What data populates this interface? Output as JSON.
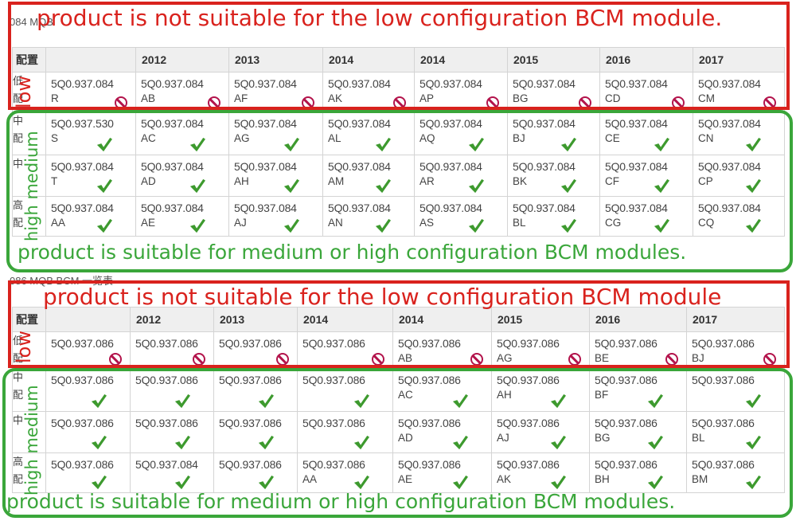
{
  "section_1": {
    "caption": "084 MQB",
    "banner_top": "product is not suitable for the low configuration BCM module.",
    "banner_bottom": "product is suitable for medium or high configuration BCM modules.",
    "vertical_low": "low",
    "vertical_medium_high": "high medium",
    "header": {
      "config_label": "配置",
      "years": [
        "",
        "2012",
        "2013",
        "2014",
        "2014",
        "2015",
        "2016",
        "2017"
      ]
    },
    "rows": [
      {
        "label": [
          "低",
          "配"
        ],
        "tier": "low",
        "status": "not-suitable",
        "cells": [
          {
            "pn": "5Q0.937.084",
            "suffix": "R"
          },
          {
            "pn": "5Q0.937.084",
            "suffix": "AB"
          },
          {
            "pn": "5Q0.937.084",
            "suffix": "AF"
          },
          {
            "pn": "5Q0.937.084",
            "suffix": "AK"
          },
          {
            "pn": "5Q0.937.084",
            "suffix": "AP"
          },
          {
            "pn": "5Q0.937.084",
            "suffix": "BG"
          },
          {
            "pn": "5Q0.937.084",
            "suffix": "CD"
          },
          {
            "pn": "5Q0.937.084",
            "suffix": "CM"
          }
        ]
      },
      {
        "label": [
          "中",
          "配"
        ],
        "tier": "medium",
        "status": "suitable",
        "cells": [
          {
            "pn": "5Q0.937.530",
            "suffix": "S"
          },
          {
            "pn": "5Q0.937.084",
            "suffix": "AC"
          },
          {
            "pn": "5Q0.937.084",
            "suffix": "AG"
          },
          {
            "pn": "5Q0.937.084",
            "suffix": "AL"
          },
          {
            "pn": "5Q0.937.084",
            "suffix": "AQ"
          },
          {
            "pn": "5Q0.937.084",
            "suffix": "BJ"
          },
          {
            "pn": "5Q0.937.084",
            "suffix": "CE"
          },
          {
            "pn": "5Q0.937.084",
            "suffix": "CN"
          }
        ]
      },
      {
        "label": [
          "中",
          ""
        ],
        "tier": "medium",
        "status": "suitable",
        "cells": [
          {
            "pn": "5Q0.937.084",
            "suffix": "T"
          },
          {
            "pn": "5Q0.937.084",
            "suffix": "AD"
          },
          {
            "pn": "5Q0.937.084",
            "suffix": "AH"
          },
          {
            "pn": "5Q0.937.084",
            "suffix": "AM"
          },
          {
            "pn": "5Q0.937.084",
            "suffix": "AR"
          },
          {
            "pn": "5Q0.937.084",
            "suffix": "BK"
          },
          {
            "pn": "5Q0.937.084",
            "suffix": "CF"
          },
          {
            "pn": "5Q0.937.084",
            "suffix": "CP"
          }
        ]
      },
      {
        "label": [
          "高",
          "配"
        ],
        "tier": "high",
        "status": "suitable",
        "cells": [
          {
            "pn": "5Q0.937.084",
            "suffix": "AA"
          },
          {
            "pn": "5Q0.937.084",
            "suffix": "AE"
          },
          {
            "pn": "5Q0.937.084",
            "suffix": "AJ"
          },
          {
            "pn": "5Q0.937.084",
            "suffix": "AN"
          },
          {
            "pn": "5Q0.937.084",
            "suffix": "AS"
          },
          {
            "pn": "5Q0.937.084",
            "suffix": "BL"
          },
          {
            "pn": "5Q0.937.084",
            "suffix": "CG"
          },
          {
            "pn": "5Q0.937.084",
            "suffix": "CQ"
          }
        ]
      }
    ]
  },
  "section_2": {
    "caption": "086 MQB BCM 一览表",
    "banner_top": "product is not suitable for the low configuration BCM module",
    "banner_bottom": "product is suitable for medium or high configuration BCM modules.",
    "vertical_low": "low",
    "vertical_medium_high": "high medium",
    "header": {
      "config_label": "配置",
      "years": [
        "",
        "2012",
        "2013",
        "2014",
        "2014",
        "2015",
        "2016",
        "2017"
      ]
    },
    "rows": [
      {
        "label": [
          "低",
          "配"
        ],
        "tier": "low",
        "status": "not-suitable",
        "cells": [
          {
            "pn": "5Q0.937.086",
            "suffix": ""
          },
          {
            "pn": "5Q0.937.086",
            "suffix": ""
          },
          {
            "pn": "5Q0.937.086",
            "suffix": ""
          },
          {
            "pn": "5Q0.937.086",
            "suffix": ""
          },
          {
            "pn": "5Q0.937.086",
            "suffix": "AB"
          },
          {
            "pn": "5Q0.937.086",
            "suffix": "AG"
          },
          {
            "pn": "5Q0.937.086",
            "suffix": "BE"
          },
          {
            "pn": "5Q0.937.086",
            "suffix": "BJ"
          }
        ]
      },
      {
        "label": [
          "中",
          "配"
        ],
        "tier": "medium",
        "status": "suitable",
        "cells": [
          {
            "pn": "5Q0.937.086",
            "suffix": ""
          },
          {
            "pn": "5Q0.937.086",
            "suffix": ""
          },
          {
            "pn": "5Q0.937.086",
            "suffix": ""
          },
          {
            "pn": "5Q0.937.086",
            "suffix": ""
          },
          {
            "pn": "5Q0.937.086",
            "suffix": "AC"
          },
          {
            "pn": "5Q0.937.086",
            "suffix": "AH"
          },
          {
            "pn": "5Q0.937.086",
            "suffix": "BF"
          },
          {
            "pn": "5Q0.937.086",
            "suffix": ""
          }
        ]
      },
      {
        "label": [
          "中",
          ""
        ],
        "tier": "medium",
        "status": "suitable",
        "cells": [
          {
            "pn": "5Q0.937.086",
            "suffix": ""
          },
          {
            "pn": "5Q0.937.086",
            "suffix": ""
          },
          {
            "pn": "5Q0.937.086",
            "suffix": ""
          },
          {
            "pn": "5Q0.937.086",
            "suffix": ""
          },
          {
            "pn": "5Q0.937.086",
            "suffix": "AD"
          },
          {
            "pn": "5Q0.937.086",
            "suffix": "AJ"
          },
          {
            "pn": "5Q0.937.086",
            "suffix": "BG"
          },
          {
            "pn": "5Q0.937.086",
            "suffix": "BL"
          }
        ]
      },
      {
        "label": [
          "高",
          "配"
        ],
        "tier": "high",
        "status": "suitable",
        "cells": [
          {
            "pn": "5Q0.937.086",
            "suffix": ""
          },
          {
            "pn": "5Q0.937.084",
            "suffix": ""
          },
          {
            "pn": "5Q0.937.086",
            "suffix": ""
          },
          {
            "pn": "5Q0.937.086",
            "suffix": "AA"
          },
          {
            "pn": "5Q0.937.086",
            "suffix": "AE"
          },
          {
            "pn": "5Q0.937.086",
            "suffix": "AK"
          },
          {
            "pn": "5Q0.937.086",
            "suffix": "BH"
          },
          {
            "pn": "5Q0.937.086",
            "suffix": "BM"
          }
        ]
      }
    ]
  },
  "colors": {
    "not_suitable": "#d9221d",
    "suitable": "#3aa63a",
    "prohibit_icon": "#b3134b",
    "check_icon": "#3d9a2e",
    "header_bg": "#efefef",
    "grid": "#d4d4d4"
  }
}
